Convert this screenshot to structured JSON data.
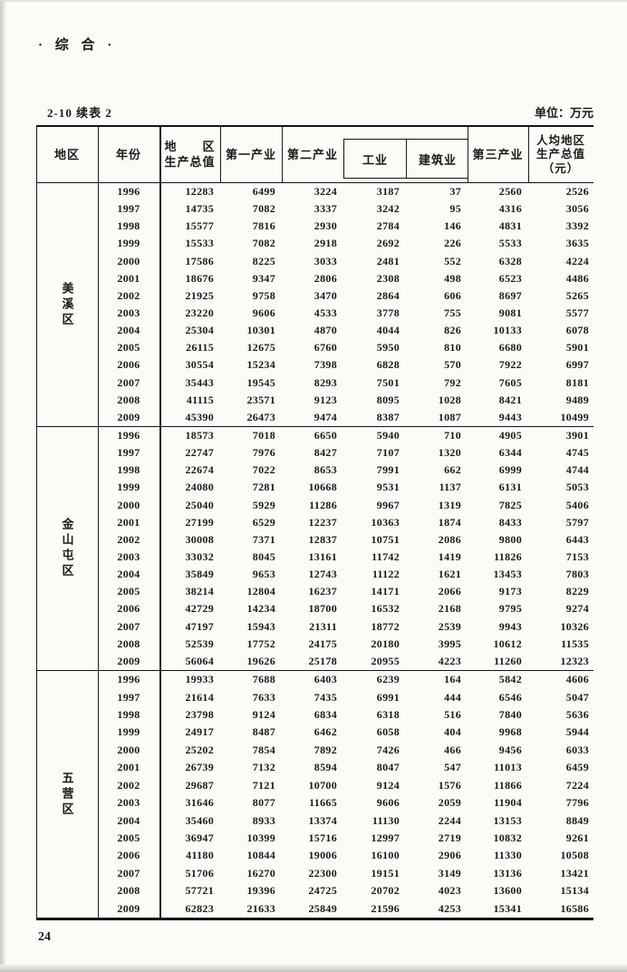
{
  "page": {
    "top_label": "· 综  合 ·",
    "table_caption": "2-10  续表 2",
    "unit_label": "单位：万元",
    "page_number": "24"
  },
  "table": {
    "headers": {
      "region": "地区",
      "year": "年份",
      "gdp_line1": "地　　区",
      "gdp_line2": "生产总值",
      "primary": "第一产业",
      "secondary": "第二产业",
      "industry": "工业",
      "construction": "建筑业",
      "tertiary": "第三产业",
      "per_capita_line1": "人均地区",
      "per_capita_line2": "生产总值",
      "per_capita_line3": "（元）"
    },
    "sections": [
      {
        "region": "美溪区",
        "rows": [
          [
            "1996",
            "12283",
            "6499",
            "3224",
            "3187",
            "37",
            "2560",
            "2526"
          ],
          [
            "1997",
            "14735",
            "7082",
            "3337",
            "3242",
            "95",
            "4316",
            "3056"
          ],
          [
            "1998",
            "15577",
            "7816",
            "2930",
            "2784",
            "146",
            "4831",
            "3392"
          ],
          [
            "1999",
            "15533",
            "7082",
            "2918",
            "2692",
            "226",
            "5533",
            "3635"
          ],
          [
            "2000",
            "17586",
            "8225",
            "3033",
            "2481",
            "552",
            "6328",
            "4224"
          ],
          [
            "2001",
            "18676",
            "9347",
            "2806",
            "2308",
            "498",
            "6523",
            "4486"
          ],
          [
            "2002",
            "21925",
            "9758",
            "3470",
            "2864",
            "606",
            "8697",
            "5265"
          ],
          [
            "2003",
            "23220",
            "9606",
            "4533",
            "3778",
            "755",
            "9081",
            "5577"
          ],
          [
            "2004",
            "25304",
            "10301",
            "4870",
            "4044",
            "826",
            "10133",
            "6078"
          ],
          [
            "2005",
            "26115",
            "12675",
            "6760",
            "5950",
            "810",
            "6680",
            "5901"
          ],
          [
            "2006",
            "30554",
            "15234",
            "7398",
            "6828",
            "570",
            "7922",
            "6997"
          ],
          [
            "2007",
            "35443",
            "19545",
            "8293",
            "7501",
            "792",
            "7605",
            "8181"
          ],
          [
            "2008",
            "41115",
            "23571",
            "9123",
            "8095",
            "1028",
            "8421",
            "9489"
          ],
          [
            "2009",
            "45390",
            "26473",
            "9474",
            "8387",
            "1087",
            "9443",
            "10499"
          ]
        ]
      },
      {
        "region": "金山屯区",
        "rows": [
          [
            "1996",
            "18573",
            "7018",
            "6650",
            "5940",
            "710",
            "4905",
            "3901"
          ],
          [
            "1997",
            "22747",
            "7976",
            "8427",
            "7107",
            "1320",
            "6344",
            "4745"
          ],
          [
            "1998",
            "22674",
            "7022",
            "8653",
            "7991",
            "662",
            "6999",
            "4744"
          ],
          [
            "1999",
            "24080",
            "7281",
            "10668",
            "9531",
            "1137",
            "6131",
            "5053"
          ],
          [
            "2000",
            "25040",
            "5929",
            "11286",
            "9967",
            "1319",
            "7825",
            "5406"
          ],
          [
            "2001",
            "27199",
            "6529",
            "12237",
            "10363",
            "1874",
            "8433",
            "5797"
          ],
          [
            "2002",
            "30008",
            "7371",
            "12837",
            "10751",
            "2086",
            "9800",
            "6443"
          ],
          [
            "2003",
            "33032",
            "8045",
            "13161",
            "11742",
            "1419",
            "11826",
            "7153"
          ],
          [
            "2004",
            "35849",
            "9653",
            "12743",
            "11122",
            "1621",
            "13453",
            "7803"
          ],
          [
            "2005",
            "38214",
            "12804",
            "16237",
            "14171",
            "2066",
            "9173",
            "8229"
          ],
          [
            "2006",
            "42729",
            "14234",
            "18700",
            "16532",
            "2168",
            "9795",
            "9274"
          ],
          [
            "2007",
            "47197",
            "15943",
            "21311",
            "18772",
            "2539",
            "9943",
            "10326"
          ],
          [
            "2008",
            "52539",
            "17752",
            "24175",
            "20180",
            "3995",
            "10612",
            "11535"
          ],
          [
            "2009",
            "56064",
            "19626",
            "25178",
            "20955",
            "4223",
            "11260",
            "12323"
          ]
        ]
      },
      {
        "region": "五营区",
        "rows": [
          [
            "1996",
            "19933",
            "7688",
            "6403",
            "6239",
            "164",
            "5842",
            "4606"
          ],
          [
            "1997",
            "21614",
            "7633",
            "7435",
            "6991",
            "444",
            "6546",
            "5047"
          ],
          [
            "1998",
            "23798",
            "9124",
            "6834",
            "6318",
            "516",
            "7840",
            "5636"
          ],
          [
            "1999",
            "24917",
            "8487",
            "6462",
            "6058",
            "404",
            "9968",
            "5944"
          ],
          [
            "2000",
            "25202",
            "7854",
            "7892",
            "7426",
            "466",
            "9456",
            "6033"
          ],
          [
            "2001",
            "26739",
            "7132",
            "8594",
            "8047",
            "547",
            "11013",
            "6459"
          ],
          [
            "2002",
            "29687",
            "7121",
            "10700",
            "9124",
            "1576",
            "11866",
            "7224"
          ],
          [
            "2003",
            "31646",
            "8077",
            "11665",
            "9606",
            "2059",
            "11904",
            "7796"
          ],
          [
            "2004",
            "35460",
            "8933",
            "13374",
            "11130",
            "2244",
            "13153",
            "8849"
          ],
          [
            "2005",
            "36947",
            "10399",
            "15716",
            "12997",
            "2719",
            "10832",
            "9261"
          ],
          [
            "2006",
            "41180",
            "10844",
            "19006",
            "16100",
            "2906",
            "11330",
            "10508"
          ],
          [
            "2007",
            "51706",
            "16270",
            "22300",
            "19151",
            "3149",
            "13136",
            "13421"
          ],
          [
            "2008",
            "57721",
            "19396",
            "24725",
            "20702",
            "4023",
            "13600",
            "15134"
          ],
          [
            "2009",
            "62823",
            "21633",
            "25849",
            "21596",
            "4253",
            "15341",
            "16586"
          ]
        ]
      }
    ]
  }
}
